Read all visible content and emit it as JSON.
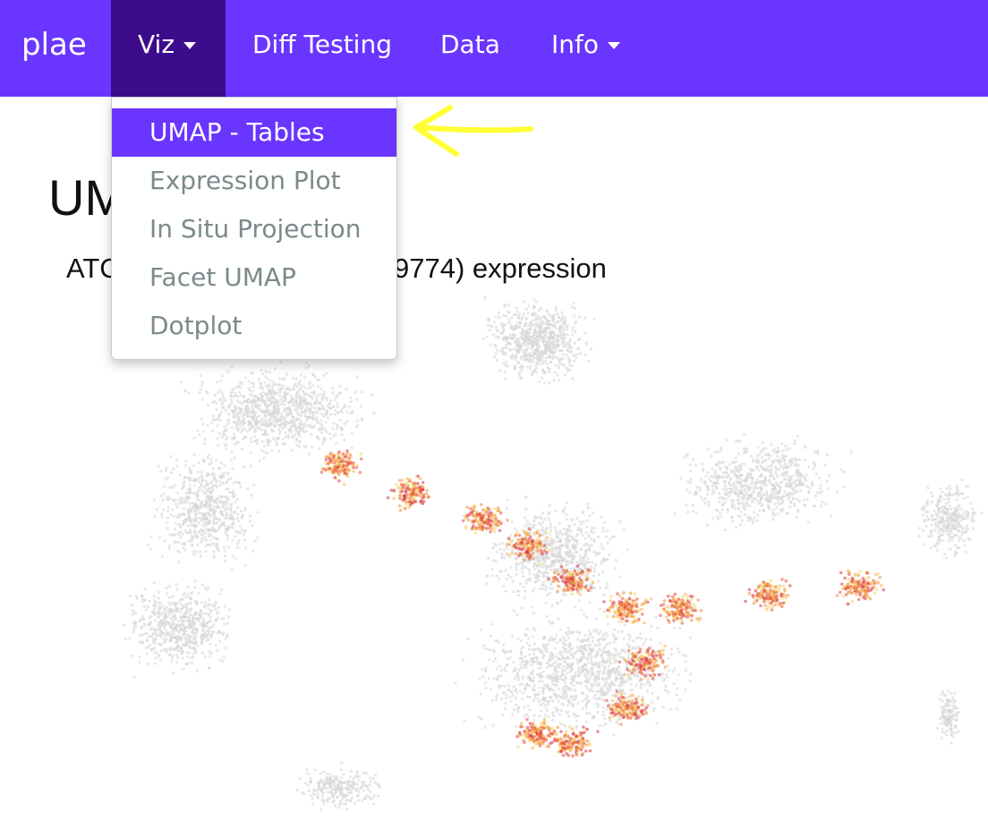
{
  "navbar": {
    "brand": "plae",
    "items": [
      {
        "label": "Viz",
        "has_caret": true,
        "active": true
      },
      {
        "label": "Diff Testing",
        "has_caret": false,
        "active": false
      },
      {
        "label": "Data",
        "has_caret": false,
        "active": false
      },
      {
        "label": "Info",
        "has_caret": true,
        "active": false
      }
    ],
    "color": "#6a35ff",
    "active_color": "#3d0c8c"
  },
  "viz_menu": {
    "items": [
      {
        "label": "UMAP - Tables",
        "selected": true
      },
      {
        "label": "Expression Plot",
        "selected": false
      },
      {
        "label": "In Situ Projection",
        "selected": false
      },
      {
        "label": "Facet UMAP",
        "selected": false
      },
      {
        "label": "Dotplot",
        "selected": false
      }
    ]
  },
  "page": {
    "heading_visible": "UM",
    "subtitle_left_visible": "ATC",
    "subtitle_right_visible": "9774) expression"
  },
  "annotation": {
    "icon": "arrow-left-icon",
    "color": "#ffff33"
  }
}
